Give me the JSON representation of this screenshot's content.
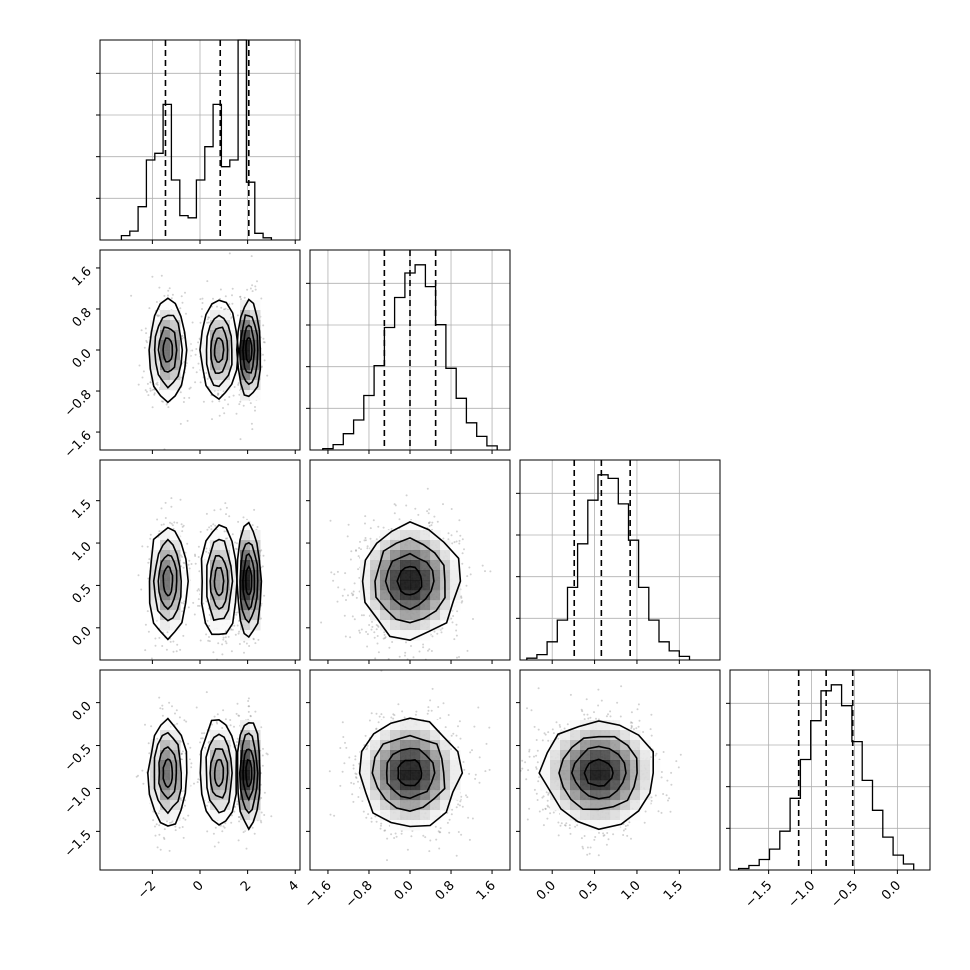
{
  "chart_data": {
    "type": "corner",
    "title": "",
    "grid": true,
    "parameters": [
      {
        "range": [
          -4.2,
          4.2
        ],
        "ticks": [
          -2,
          0,
          2,
          4
        ],
        "tick_labels": [
          "−2",
          "0",
          "2",
          "4"
        ],
        "quantiles": [
          -1.45,
          0.85,
          2.05
        ],
        "hist": {
          "bins": [
            -3.3,
            -2.95,
            -2.6,
            -2.25,
            -1.9,
            -1.55,
            -1.2,
            -0.85,
            -0.5,
            -0.15,
            0.2,
            0.55,
            0.9,
            1.25,
            1.6,
            1.95,
            2.3,
            2.65,
            3.0
          ],
          "counts": [
            0.02,
            0.04,
            0.15,
            0.36,
            0.39,
            0.61,
            0.27,
            0.11,
            0.1,
            0.27,
            0.42,
            0.61,
            0.33,
            0.36,
            0.93,
            0.26,
            0.03,
            0.01
          ]
        }
      },
      {
        "range": [
          -1.95,
          1.95
        ],
        "ticks": [
          -1.6,
          -0.8,
          0.0,
          0.8,
          1.6
        ],
        "tick_labels": [
          "−1.6",
          "−0.8",
          "0.0",
          "0.8",
          "1.6"
        ],
        "quantiles": [
          -0.5,
          0.0,
          0.5
        ],
        "hist": {
          "bins": [
            -1.7,
            -1.5,
            -1.3,
            -1.1,
            -0.9,
            -0.7,
            -0.5,
            -0.3,
            -0.1,
            0.1,
            0.3,
            0.5,
            0.7,
            0.9,
            1.1,
            1.3,
            1.5,
            1.7
          ],
          "counts": [
            0.005,
            0.02,
            0.06,
            0.11,
            0.2,
            0.31,
            0.45,
            0.56,
            0.65,
            0.68,
            0.6,
            0.46,
            0.3,
            0.19,
            0.1,
            0.05,
            0.015
          ]
        }
      },
      {
        "range": [
          -0.38,
          1.98
        ],
        "ticks": [
          0.0,
          0.5,
          1.0,
          1.5
        ],
        "tick_labels": [
          "0.0",
          "0.5",
          "1.0",
          "1.5"
        ],
        "quantiles": [
          0.26,
          0.58,
          0.92
        ],
        "hist": {
          "bins": [
            -0.3,
            -0.18,
            -0.06,
            0.06,
            0.18,
            0.3,
            0.42,
            0.54,
            0.66,
            0.78,
            0.9,
            1.02,
            1.14,
            1.26,
            1.38,
            1.5,
            1.62
          ],
          "counts": [
            0.005,
            0.015,
            0.05,
            0.11,
            0.2,
            0.32,
            0.44,
            0.51,
            0.5,
            0.43,
            0.33,
            0.2,
            0.11,
            0.05,
            0.025,
            0.01
          ]
        }
      },
      {
        "range": [
          -1.95,
          0.38
        ],
        "ticks": [
          -1.5,
          -1.0,
          -0.5,
          0.0
        ],
        "tick_labels": [
          "−1.5",
          "−1.0",
          "−0.5",
          "0.0"
        ],
        "quantiles": [
          -1.15,
          -0.83,
          -0.52
        ],
        "hist": {
          "bins": [
            -1.85,
            -1.73,
            -1.61,
            -1.49,
            -1.37,
            -1.25,
            -1.13,
            -1.01,
            -0.89,
            -0.77,
            -0.65,
            -0.53,
            -0.41,
            -0.29,
            -0.17,
            -0.05,
            0.07,
            0.19
          ],
          "counts": [
            0.005,
            0.015,
            0.035,
            0.07,
            0.13,
            0.24,
            0.37,
            0.5,
            0.6,
            0.62,
            0.55,
            0.43,
            0.3,
            0.2,
            0.11,
            0.05,
            0.02
          ]
        }
      }
    ],
    "mixture": {
      "p0": [
        {
          "w": 0.35,
          "m": -1.35,
          "s": 0.4
        },
        {
          "w": 0.27,
          "m": 0.8,
          "s": 0.38
        },
        {
          "w": 0.38,
          "m": 2.05,
          "s": 0.25
        }
      ],
      "p1": {
        "m": 0.0,
        "s": 0.48
      },
      "p2": {
        "m": 0.55,
        "s": 0.33
      },
      "p3": {
        "m": -0.82,
        "s": 0.31
      }
    }
  }
}
